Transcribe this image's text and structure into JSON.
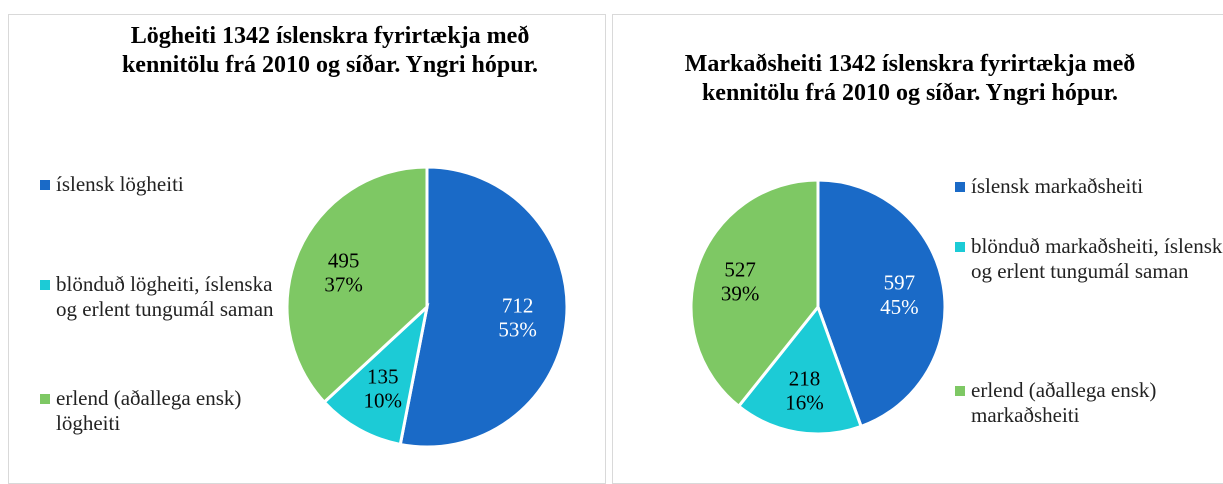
{
  "chart_data": [
    {
      "type": "pie",
      "title": "Lögheiti 1342 íslenskra fyrirtækja með kennitölu frá 2010 og síðar. Yngri hópur.",
      "categories": [
        "íslensk lögheiti",
        "blönduð lögheiti, íslenska og erlent tungumál saman",
        "erlend (aðallega ensk) lögheiti"
      ],
      "values": [
        712,
        135,
        495
      ],
      "percent_labels": [
        "53%",
        "10%",
        "37%"
      ],
      "colors": [
        "#1a6ac7",
        "#1ccbd6",
        "#7ec864"
      ]
    },
    {
      "type": "pie",
      "title": "Markaðsheiti 1342 íslenskra fyrirtækja með kennitölu frá 2010 og síðar. Yngri hópur.",
      "categories": [
        "íslensk markaðsheiti",
        "blönduð markaðsheiti, íslenska og erlent tungumál saman",
        "erlend (aðallega ensk) markaðsheiti"
      ],
      "values": [
        597,
        218,
        527
      ],
      "percent_labels": [
        "45%",
        "16%",
        "39%"
      ],
      "colors": [
        "#1a6ac7",
        "#1ccbd6",
        "#7ec864"
      ]
    }
  ]
}
